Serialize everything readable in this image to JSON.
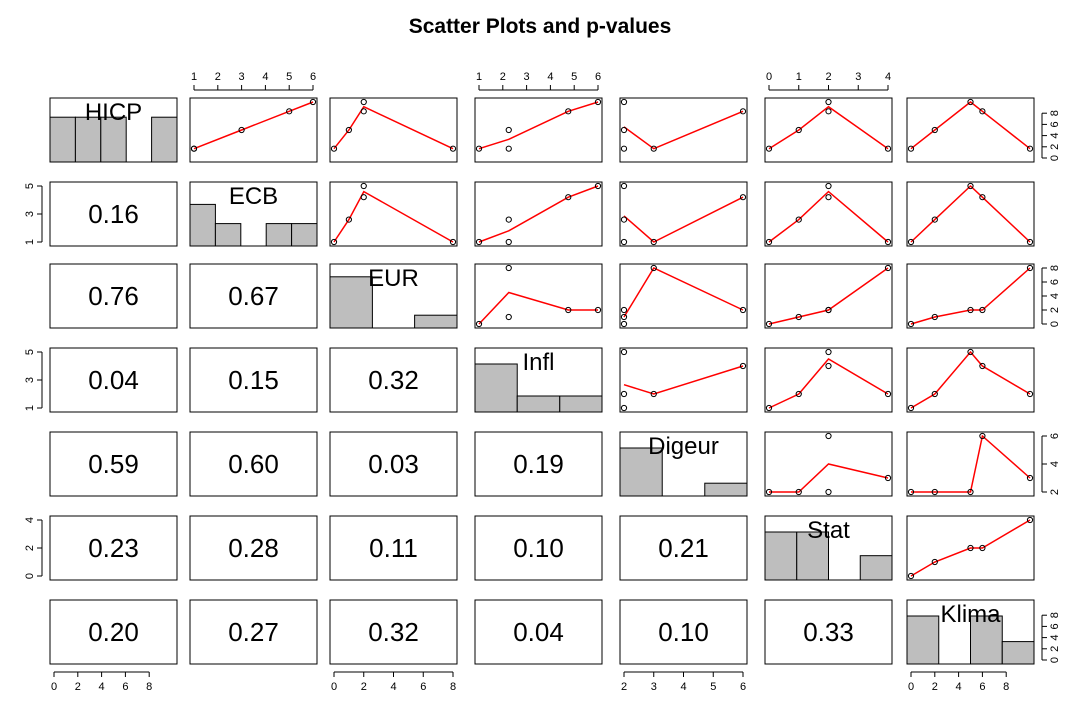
{
  "chart_data": {
    "type": "scatter",
    "title": "Scatter Plots and p-values",
    "variables": [
      "HICP",
      "ECB",
      "EUR",
      "Infl",
      "Digeur",
      "Stat",
      "Klima"
    ],
    "observations": {
      "HICP": [
        1,
        1,
        3,
        5,
        6
      ],
      "ECB": [
        1,
        1,
        3,
        5,
        6
      ],
      "EUR": [
        0,
        8,
        1,
        2,
        2
      ],
      "Infl": [
        1,
        2,
        2,
        4,
        5
      ],
      "Digeur": [
        2,
        3,
        2,
        6,
        2
      ],
      "Stat": [
        0,
        4,
        1,
        2,
        2
      ],
      "Klima": [
        0,
        10,
        2,
        6,
        5
      ]
    },
    "lowess_color": "#ff0000",
    "hist_fill": "#bebebe",
    "pvalue_cells": [
      {
        "row": 1,
        "col": 0,
        "label": "0.16"
      },
      {
        "row": 2,
        "col": 0,
        "label": "0.76"
      },
      {
        "row": 2,
        "col": 1,
        "label": "0.67"
      },
      {
        "row": 3,
        "col": 0,
        "label": "0.04"
      },
      {
        "row": 3,
        "col": 1,
        "label": "0.15"
      },
      {
        "row": 3,
        "col": 2,
        "label": "0.32"
      },
      {
        "row": 4,
        "col": 0,
        "label": "0.59"
      },
      {
        "row": 4,
        "col": 1,
        "label": "0.60"
      },
      {
        "row": 4,
        "col": 2,
        "label": "0.03"
      },
      {
        "row": 4,
        "col": 3,
        "label": "0.19"
      },
      {
        "row": 5,
        "col": 0,
        "label": "0.23"
      },
      {
        "row": 5,
        "col": 1,
        "label": "0.28"
      },
      {
        "row": 5,
        "col": 2,
        "label": "0.11"
      },
      {
        "row": 5,
        "col": 3,
        "label": "0.10"
      },
      {
        "row": 5,
        "col": 4,
        "label": "0.21"
      },
      {
        "row": 6,
        "col": 0,
        "label": "0.20"
      },
      {
        "row": 6,
        "col": 1,
        "label": "0.27"
      },
      {
        "row": 6,
        "col": 2,
        "label": "0.32"
      },
      {
        "row": 6,
        "col": 3,
        "label": "0.04"
      },
      {
        "row": 6,
        "col": 4,
        "label": "0.10"
      },
      {
        "row": 6,
        "col": 5,
        "label": "0.33"
      }
    ],
    "axes": {
      "HICP": {
        "lim": [
          0,
          6
        ],
        "ticks": [
          "1",
          "2",
          "3",
          "4",
          "5",
          "6"
        ],
        "tick_values": [
          1,
          2,
          3,
          4,
          5,
          6
        ],
        "side": "top"
      },
      "ECB": {
        "lim": [
          1,
          6
        ],
        "ticks": [
          "1",
          "3",
          "5"
        ],
        "tick_values": [
          1,
          3,
          5
        ],
        "side": "left"
      },
      "EUR": {
        "lim": [
          0,
          8
        ],
        "ticks": [
          "0",
          "2",
          "4",
          "6",
          "8"
        ],
        "tick_values": [
          0,
          2,
          4,
          6,
          8
        ],
        "side": "bottom"
      },
      "Infl": {
        "lim": [
          1,
          5
        ],
        "ticks": [
          "1",
          "2",
          "3",
          "4",
          "5"
        ],
        "tick_values": [
          1,
          2,
          3,
          4,
          5
        ],
        "side": "top"
      },
      "Digeur": {
        "lim": [
          2,
          6
        ],
        "ticks": [
          "2",
          "3",
          "4",
          "5",
          "6"
        ],
        "tick_values": [
          2,
          3,
          4,
          5,
          6
        ],
        "side": "bottom"
      },
      "Stat": {
        "lim": [
          0,
          4
        ],
        "ticks": [
          "0",
          "1",
          "2",
          "3",
          "4"
        ],
        "tick_values": [
          0,
          1,
          2,
          3,
          4
        ],
        "side": "top"
      },
      "Klima": {
        "lim": [
          0,
          10
        ],
        "ticks": [
          "0",
          "2",
          "4",
          "6",
          "8"
        ],
        "tick_values": [
          0,
          2,
          4,
          6,
          8
        ],
        "side": "bottom"
      }
    },
    "side_axes": {
      "HICP_left_bottom": {
        "lim": [
          0,
          10
        ],
        "ticks": [
          "0",
          "2",
          "4",
          "6",
          "8"
        ],
        "tick_values": [
          0,
          2,
          4,
          6,
          8
        ]
      },
      "Klima_right_top": {
        "lim": [
          0,
          10
        ],
        "ticks": [
          "0",
          "2",
          "4",
          "6",
          "8"
        ],
        "tick_values": [
          0,
          2,
          4,
          6,
          8
        ]
      },
      "EUR_right": {
        "lim": [
          0,
          8
        ],
        "ticks": [
          "0",
          "2",
          "4",
          "6",
          "8"
        ],
        "tick_values": [
          0,
          2,
          4,
          6,
          8
        ]
      },
      "Digeur_right": {
        "lim": [
          2,
          6
        ],
        "ticks": [
          "2",
          "4",
          "6"
        ],
        "tick_values": [
          2,
          4,
          6
        ]
      },
      "Klima_right": {
        "lim": [
          0,
          10
        ],
        "ticks": [
          "0",
          "2",
          "4",
          "6",
          "8"
        ],
        "tick_values": [
          0,
          2,
          4,
          6,
          8
        ]
      },
      "Infl_left": {
        "lim": [
          1,
          5
        ],
        "ticks": [
          "1",
          "3",
          "5"
        ],
        "tick_values": [
          1,
          3,
          5
        ]
      },
      "Stat_left": {
        "lim": [
          0,
          4
        ],
        "ticks": [
          "0",
          "2",
          "4"
        ],
        "tick_values": [
          0,
          2,
          4
        ]
      },
      "ECB_top": {
        "lim": [
          1,
          6
        ],
        "ticks": [
          "1",
          "2",
          "3",
          "4",
          "5",
          "6"
        ],
        "tick_values": [
          1,
          2,
          3,
          4,
          5,
          6
        ]
      },
      "Stat_top": {
        "lim": [
          0,
          4
        ],
        "ticks": [
          "0",
          "1",
          "2",
          "3",
          "4"
        ],
        "tick_values": [
          0,
          1,
          2,
          3,
          4
        ]
      },
      "EUR_bottom": {
        "lim": [
          0,
          8
        ],
        "ticks": [
          "0",
          "2",
          "4",
          "6",
          "8"
        ],
        "tick_values": [
          0,
          2,
          4,
          6,
          8
        ]
      },
      "Digeur_bottom": {
        "lim": [
          2,
          6
        ],
        "ticks": [
          "2",
          "3",
          "4",
          "5",
          "6"
        ],
        "tick_values": [
          2,
          3,
          4,
          5,
          6
        ]
      }
    },
    "histograms": {
      "HICP": {
        "breaks": [
          0,
          1.2,
          2.4,
          3.6,
          4.8,
          6
        ],
        "counts": [
          0.7,
          0.7,
          0.7,
          0,
          0.7
        ]
      },
      "ECB": {
        "breaks": [
          1,
          2,
          3,
          4,
          5,
          6
        ],
        "counts": [
          0.65,
          0.35,
          0,
          0.35,
          0.35
        ]
      },
      "EUR": {
        "breaks": [
          0,
          2.67,
          5.33,
          8
        ],
        "counts": [
          0.8,
          0,
          0.2
        ]
      },
      "Infl": {
        "breaks": [
          1,
          2.33,
          3.67,
          5
        ],
        "counts": [
          0.75,
          0.25,
          0.25
        ]
      },
      "Digeur": {
        "breaks": [
          2,
          3.33,
          4.67,
          6
        ],
        "counts": [
          0.75,
          0,
          0.2
        ]
      },
      "Stat": {
        "breaks": [
          0,
          1,
          2,
          3,
          4
        ],
        "counts": [
          0.75,
          0.75,
          0,
          0.38
        ]
      },
      "Klima": {
        "breaks": [
          0,
          2.5,
          5,
          7.5,
          10
        ],
        "counts": [
          0.75,
          0,
          0.75,
          0.35
        ]
      }
    }
  }
}
